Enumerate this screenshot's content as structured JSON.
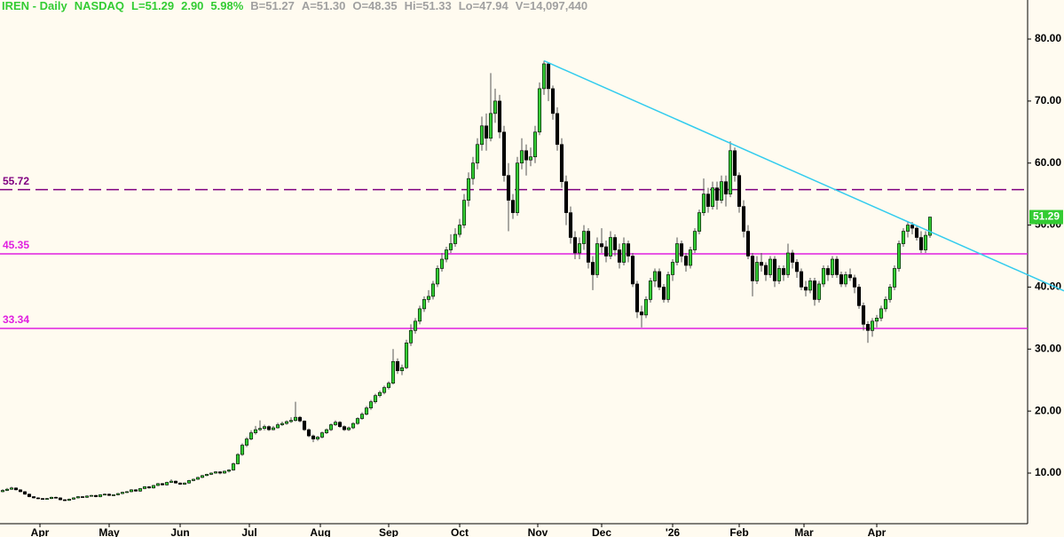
{
  "chart_data": {
    "type": "candlestick",
    "header": {
      "title": "IREN - Daily",
      "exchange": "NASDAQ",
      "quote": [
        "L=51.29",
        "2.90",
        "5.98%"
      ],
      "stats": [
        "B=51.27",
        "A=51.30",
        "O=48.35",
        "Hi=51.33",
        "Lo=47.94",
        "V=14,097,440"
      ]
    },
    "candles": [
      [
        7.0,
        7.4,
        6.9,
        7.2
      ],
      [
        7.2,
        7.6,
        7.1,
        7.4
      ],
      [
        7.4,
        7.8,
        7.3,
        7.6
      ],
      [
        7.6,
        7.7,
        7.2,
        7.3
      ],
      [
        7.3,
        7.4,
        6.9,
        7.0
      ],
      [
        7.0,
        7.1,
        6.5,
        6.6
      ],
      [
        6.6,
        6.7,
        6.1,
        6.2
      ],
      [
        6.2,
        6.3,
        5.9,
        6.0
      ],
      [
        6.0,
        6.1,
        5.8,
        5.9
      ],
      [
        5.9,
        6.0,
        5.7,
        5.8
      ],
      [
        5.8,
        6.0,
        5.7,
        5.9
      ],
      [
        5.9,
        6.2,
        5.8,
        6.1
      ],
      [
        6.1,
        6.2,
        5.9,
        6.0
      ],
      [
        6.0,
        6.1,
        5.6,
        5.7
      ],
      [
        5.7,
        5.8,
        5.5,
        5.6
      ],
      [
        5.6,
        5.9,
        5.5,
        5.8
      ],
      [
        5.8,
        6.1,
        5.7,
        6.0
      ],
      [
        6.0,
        6.3,
        5.9,
        6.2
      ],
      [
        6.2,
        6.3,
        6.0,
        6.1
      ],
      [
        6.1,
        6.4,
        6.0,
        6.3
      ],
      [
        6.3,
        6.5,
        6.2,
        6.4
      ],
      [
        6.4,
        6.5,
        6.1,
        6.2
      ],
      [
        6.2,
        6.6,
        6.1,
        6.5
      ],
      [
        6.5,
        6.7,
        6.4,
        6.6
      ],
      [
        6.6,
        6.7,
        6.3,
        6.4
      ],
      [
        6.4,
        6.6,
        6.3,
        6.5
      ],
      [
        6.5,
        6.8,
        6.4,
        6.7
      ],
      [
        6.7,
        7.0,
        6.6,
        6.9
      ],
      [
        6.9,
        7.1,
        6.8,
        7.0
      ],
      [
        7.0,
        7.4,
        6.9,
        7.3
      ],
      [
        7.3,
        7.4,
        7.0,
        7.1
      ],
      [
        7.1,
        7.6,
        7.0,
        7.5
      ],
      [
        7.5,
        7.9,
        7.4,
        7.8
      ],
      [
        7.8,
        7.9,
        7.5,
        7.6
      ],
      [
        7.6,
        8.1,
        7.5,
        8.0
      ],
      [
        8.0,
        8.4,
        7.9,
        8.3
      ],
      [
        8.3,
        8.4,
        8.0,
        8.1
      ],
      [
        8.1,
        8.6,
        8.0,
        8.5
      ],
      [
        8.5,
        9.0,
        8.4,
        8.7
      ],
      [
        8.7,
        8.8,
        8.3,
        8.4
      ],
      [
        8.4,
        8.5,
        8.1,
        8.2
      ],
      [
        8.2,
        8.5,
        8.1,
        8.4
      ],
      [
        8.4,
        8.9,
        8.3,
        8.8
      ],
      [
        8.8,
        9.1,
        8.7,
        9.0
      ],
      [
        9.0,
        9.4,
        8.9,
        9.3
      ],
      [
        9.3,
        9.7,
        9.2,
        9.6
      ],
      [
        9.6,
        9.9,
        9.5,
        9.8
      ],
      [
        9.8,
        10.1,
        9.7,
        10.0
      ],
      [
        10.0,
        10.3,
        9.9,
        10.2
      ],
      [
        10.2,
        10.3,
        9.8,
        10.0
      ],
      [
        10.0,
        10.4,
        9.9,
        10.3
      ],
      [
        10.3,
        10.6,
        10.1,
        10.5
      ],
      [
        10.5,
        11.7,
        10.4,
        11.5
      ],
      [
        11.5,
        13.2,
        11.4,
        13.0
      ],
      [
        13.0,
        14.8,
        12.8,
        14.5
      ],
      [
        14.5,
        15.8,
        14.2,
        15.5
      ],
      [
        15.5,
        16.9,
        15.3,
        16.5
      ],
      [
        16.5,
        17.6,
        16.2,
        17.0
      ],
      [
        17.0,
        18.5,
        16.8,
        17.2
      ],
      [
        17.2,
        17.8,
        16.9,
        17.5
      ],
      [
        17.5,
        17.7,
        16.8,
        17.0
      ],
      [
        17.0,
        17.6,
        16.9,
        17.3
      ],
      [
        17.3,
        18.1,
        17.2,
        17.8
      ],
      [
        17.8,
        18.3,
        17.6,
        18.0
      ],
      [
        18.0,
        18.5,
        17.8,
        18.3
      ],
      [
        18.3,
        19.0,
        18.1,
        18.5
      ],
      [
        18.5,
        21.5,
        18.3,
        19.0
      ],
      [
        19.0,
        19.2,
        18.2,
        18.4
      ],
      [
        18.4,
        18.5,
        16.8,
        17.0
      ],
      [
        17.0,
        17.2,
        15.8,
        16.0
      ],
      [
        16.0,
        16.2,
        15.0,
        15.5
      ],
      [
        15.5,
        16.0,
        15.2,
        15.8
      ],
      [
        15.8,
        16.7,
        15.6,
        16.5
      ],
      [
        16.5,
        17.2,
        16.3,
        17.0
      ],
      [
        17.0,
        18.0,
        16.8,
        17.8
      ],
      [
        17.8,
        18.5,
        17.6,
        18.2
      ],
      [
        18.2,
        18.4,
        17.3,
        17.5
      ],
      [
        17.5,
        17.7,
        16.8,
        17.0
      ],
      [
        17.0,
        17.5,
        16.8,
        17.3
      ],
      [
        17.3,
        18.2,
        17.1,
        18.0
      ],
      [
        18.0,
        19.0,
        17.8,
        18.8
      ],
      [
        18.8,
        19.8,
        18.6,
        19.5
      ],
      [
        19.5,
        20.8,
        19.3,
        20.5
      ],
      [
        20.5,
        21.8,
        20.2,
        21.5
      ],
      [
        21.5,
        22.8,
        21.2,
        22.5
      ],
      [
        22.5,
        23.3,
        22.2,
        23.0
      ],
      [
        23.0,
        24.1,
        22.7,
        23.8
      ],
      [
        23.8,
        24.8,
        23.5,
        24.5
      ],
      [
        24.5,
        30.0,
        24.3,
        28.0
      ],
      [
        28.0,
        28.5,
        26.0,
        26.5
      ],
      [
        26.5,
        27.5,
        25.8,
        27.0
      ],
      [
        27.0,
        31.5,
        26.8,
        31.0
      ],
      [
        31.0,
        34.0,
        30.5,
        33.0
      ],
      [
        33.0,
        35.0,
        32.5,
        34.5
      ],
      [
        34.5,
        37.0,
        34.0,
        36.5
      ],
      [
        36.5,
        38.5,
        36.0,
        38.0
      ],
      [
        38.0,
        39.5,
        37.5,
        38.5
      ],
      [
        38.5,
        41.0,
        38.0,
        40.5
      ],
      [
        40.5,
        43.5,
        40.0,
        43.0
      ],
      [
        43.0,
        45.5,
        42.5,
        44.5
      ],
      [
        44.5,
        46.5,
        44.0,
        46.0
      ],
      [
        46.0,
        48.5,
        45.5,
        47.0
      ],
      [
        47.0,
        49.5,
        46.5,
        48.5
      ],
      [
        48.5,
        51.0,
        48.0,
        50.0
      ],
      [
        50.0,
        55.0,
        49.5,
        54.0
      ],
      [
        54.0,
        58.5,
        53.0,
        57.5
      ],
      [
        57.5,
        61.0,
        56.5,
        60.0
      ],
      [
        60.0,
        64.0,
        59.0,
        63.0
      ],
      [
        63.0,
        67.5,
        62.0,
        66.0
      ],
      [
        66.0,
        68.0,
        62.0,
        64.0
      ],
      [
        64.0,
        74.5,
        63.5,
        68.0
      ],
      [
        68.0,
        72.0,
        66.5,
        70.0
      ],
      [
        70.0,
        71.0,
        64.0,
        65.0
      ],
      [
        65.0,
        66.0,
        57.0,
        58.0
      ],
      [
        58.0,
        60.0,
        49.0,
        54.0
      ],
      [
        54.0,
        55.0,
        51.0,
        52.0
      ],
      [
        52.0,
        61.0,
        51.5,
        60.0
      ],
      [
        60.0,
        64.0,
        59.0,
        62.0
      ],
      [
        62.0,
        63.0,
        58.0,
        60.5
      ],
      [
        60.5,
        62.5,
        59.5,
        61.0
      ],
      [
        61.0,
        66.0,
        60.0,
        65.0
      ],
      [
        65.0,
        73.0,
        64.5,
        72.0
      ],
      [
        72.0,
        76.5,
        71.0,
        76.0
      ],
      [
        76.0,
        76.2,
        70.0,
        72.0
      ],
      [
        72.0,
        72.5,
        67.0,
        68.0
      ],
      [
        68.0,
        69.0,
        62.0,
        63.0
      ],
      [
        63.0,
        64.0,
        56.0,
        57.0
      ],
      [
        57.0,
        58.0,
        50.0,
        52.0
      ],
      [
        52.0,
        53.0,
        47.0,
        48.0
      ],
      [
        48.0,
        49.0,
        44.5,
        45.5
      ],
      [
        45.5,
        48.0,
        44.5,
        47.0
      ],
      [
        47.0,
        50.0,
        46.0,
        49.0
      ],
      [
        49.0,
        49.5,
        43.0,
        44.0
      ],
      [
        44.0,
        45.0,
        39.5,
        42.0
      ],
      [
        42.0,
        48.0,
        41.5,
        47.0
      ],
      [
        47.0,
        49.5,
        45.5,
        46.5
      ],
      [
        46.5,
        47.5,
        44.0,
        45.0
      ],
      [
        45.0,
        49.0,
        44.5,
        48.0
      ],
      [
        48.0,
        48.5,
        45.0,
        46.0
      ],
      [
        46.0,
        47.0,
        43.0,
        44.0
      ],
      [
        44.0,
        48.0,
        43.5,
        47.0
      ],
      [
        47.0,
        47.5,
        44.0,
        45.0
      ],
      [
        45.0,
        45.5,
        40.0,
        40.5
      ],
      [
        40.5,
        41.0,
        35.0,
        36.0
      ],
      [
        36.0,
        37.0,
        33.5,
        35.5
      ],
      [
        35.5,
        38.5,
        35.0,
        38.0
      ],
      [
        38.0,
        41.5,
        37.5,
        41.0
      ],
      [
        41.0,
        43.0,
        40.0,
        42.5
      ],
      [
        42.5,
        43.0,
        39.5,
        40.0
      ],
      [
        40.0,
        40.5,
        37.5,
        38.0
      ],
      [
        38.0,
        42.5,
        37.5,
        42.0
      ],
      [
        42.0,
        44.5,
        41.0,
        44.0
      ],
      [
        44.0,
        48.0,
        43.5,
        47.0
      ],
      [
        47.0,
        47.5,
        44.0,
        45.0
      ],
      [
        45.0,
        45.5,
        42.5,
        43.5
      ],
      [
        43.5,
        46.5,
        43.0,
        46.0
      ],
      [
        46.0,
        49.5,
        45.5,
        49.0
      ],
      [
        49.0,
        52.5,
        48.5,
        52.0
      ],
      [
        52.0,
        57.5,
        51.5,
        55.0
      ],
      [
        55.0,
        56.0,
        52.0,
        53.0
      ],
      [
        53.0,
        57.0,
        52.5,
        56.0
      ],
      [
        56.0,
        57.0,
        52.5,
        54.0
      ],
      [
        54.0,
        58.0,
        53.5,
        57.0
      ],
      [
        57.0,
        58.0,
        53.0,
        55.0
      ],
      [
        55.0,
        63.5,
        54.5,
        62.0
      ],
      [
        62.0,
        62.5,
        57.0,
        58.0
      ],
      [
        58.0,
        58.5,
        52.0,
        53.0
      ],
      [
        53.0,
        54.0,
        48.0,
        49.0
      ],
      [
        49.0,
        50.0,
        44.5,
        45.0
      ],
      [
        45.0,
        45.5,
        38.5,
        41.0
      ],
      [
        41.0,
        45.0,
        40.5,
        44.0
      ],
      [
        44.0,
        45.5,
        42.5,
        43.5
      ],
      [
        43.5,
        44.0,
        41.0,
        42.0
      ],
      [
        42.0,
        45.0,
        41.5,
        44.5
      ],
      [
        44.5,
        45.0,
        40.0,
        41.0
      ],
      [
        41.0,
        43.5,
        40.5,
        43.0
      ],
      [
        43.0,
        43.5,
        41.0,
        42.0
      ],
      [
        42.0,
        47.0,
        41.5,
        45.5
      ],
      [
        45.5,
        46.0,
        43.0,
        44.0
      ],
      [
        44.0,
        44.5,
        41.5,
        42.5
      ],
      [
        42.5,
        43.0,
        39.5,
        40.0
      ],
      [
        40.0,
        41.0,
        38.5,
        39.5
      ],
      [
        39.5,
        41.5,
        39.0,
        41.0
      ],
      [
        41.0,
        41.5,
        37.0,
        38.0
      ],
      [
        38.0,
        41.0,
        37.5,
        40.5
      ],
      [
        40.5,
        43.5,
        40.0,
        43.0
      ],
      [
        43.0,
        43.5,
        41.0,
        42.0
      ],
      [
        42.0,
        45.0,
        41.5,
        44.5
      ],
      [
        44.5,
        45.0,
        41.5,
        42.0
      ],
      [
        42.0,
        42.5,
        40.0,
        40.5
      ],
      [
        40.5,
        42.5,
        40.0,
        42.0
      ],
      [
        42.0,
        43.0,
        41.0,
        41.5
      ],
      [
        41.5,
        42.0,
        39.0,
        40.0
      ],
      [
        40.0,
        40.5,
        36.5,
        37.0
      ],
      [
        37.0,
        37.5,
        33.0,
        34.0
      ],
      [
        34.0,
        34.5,
        31.0,
        33.0
      ],
      [
        33.0,
        35.0,
        32.0,
        34.5
      ],
      [
        34.5,
        35.5,
        33.5,
        35.0
      ],
      [
        35.0,
        37.0,
        34.5,
        36.5
      ],
      [
        36.5,
        38.5,
        36.0,
        38.0
      ],
      [
        38.0,
        40.5,
        37.5,
        40.0
      ],
      [
        40.0,
        43.5,
        39.5,
        43.0
      ],
      [
        43.0,
        47.5,
        42.5,
        47.0
      ],
      [
        47.0,
        49.5,
        46.5,
        49.0
      ],
      [
        49.0,
        50.5,
        48.0,
        50.0
      ],
      [
        50.0,
        50.5,
        48.5,
        49.5
      ],
      [
        49.5,
        50.0,
        47.5,
        48.0
      ],
      [
        48.0,
        49.0,
        45.5,
        46.0
      ],
      [
        46.0,
        49.0,
        45.5,
        48.35
      ],
      [
        48.35,
        51.33,
        47.94,
        51.29
      ]
    ],
    "up_color": "#33cc33",
    "down_color": "#000000",
    "xlim": [
      -0.6,
      231
    ],
    "xticks": [
      {
        "value": 8.4,
        "label": "Apr"
      },
      {
        "value": 24,
        "label": "May"
      },
      {
        "value": 40,
        "label": "Jun"
      },
      {
        "value": 55.6,
        "label": "Jul"
      },
      {
        "value": 71.6,
        "label": "Aug"
      },
      {
        "value": 87,
        "label": "Sep"
      },
      {
        "value": 103,
        "label": "Oct"
      },
      {
        "value": 120.6,
        "label": "Nov"
      },
      {
        "value": 135,
        "label": "Dec"
      },
      {
        "value": 151,
        "label": "'26"
      },
      {
        "value": 166,
        "label": "Feb"
      },
      {
        "value": 180.6,
        "label": "Mar"
      },
      {
        "value": 197,
        "label": "Apr"
      }
    ],
    "ylim": [
      1.84,
      86.3
    ],
    "yticks": [
      {
        "value": 10,
        "label": "10.00"
      },
      {
        "value": 20,
        "label": "20.00"
      },
      {
        "value": 30,
        "label": "30.00"
      },
      {
        "value": 40,
        "label": "40.00"
      },
      {
        "value": 50,
        "label": "50.00"
      },
      {
        "value": 60,
        "label": "60.00"
      },
      {
        "value": 70,
        "label": "70.00"
      },
      {
        "value": 80,
        "label": "80.00"
      }
    ],
    "hlines": [
      {
        "value": 55.72,
        "color": "#800080",
        "style": "dashed"
      },
      {
        "value": 45.35,
        "color": "#e020e0",
        "style": "solid"
      },
      {
        "value": 33.34,
        "color": "#e020e0",
        "style": "solid"
      }
    ],
    "trendline": {
      "x": [
        122,
        164
      ],
      "y": [
        76.5,
        63.2
      ],
      "color": "#33ccee"
    }
  }
}
